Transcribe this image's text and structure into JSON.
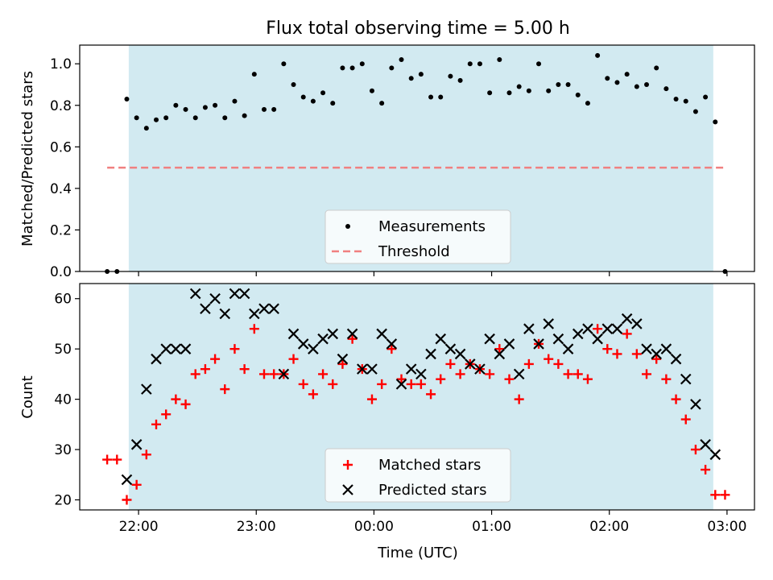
{
  "chart_data": {
    "title": "Flux total observing time = 5.00 h",
    "xlabel": "Time (UTC)",
    "x_ticks": [
      "22:00",
      "23:00",
      "00:00",
      "01:00",
      "02:00",
      "03:00"
    ],
    "shaded_region": {
      "color": "#add8e6"
    },
    "panels": [
      {
        "type": "scatter",
        "ylabel": "Matched/Predicted stars",
        "ylim": [
          0,
          1.09
        ],
        "y_ticks": [
          "0.0",
          "0.2",
          "0.4",
          "0.6",
          "0.8",
          "1.0"
        ],
        "legend": {
          "placement": "lower-center"
        },
        "series": [
          {
            "name": "Measurements",
            "color": "#000000",
            "marker": "dot",
            "x": [
              "21:44",
              "21:49",
              "21:54",
              "21:59",
              "22:04",
              "22:09",
              "22:14",
              "22:19",
              "22:24",
              "22:29",
              "22:34",
              "22:39",
              "22:44",
              "22:49",
              "22:54",
              "22:59",
              "23:04",
              "23:09",
              "23:14",
              "23:19",
              "23:24",
              "23:29",
              "23:34",
              "23:39",
              "23:44",
              "23:49",
              "23:54",
              "23:59",
              "00:04",
              "00:09",
              "00:14",
              "00:19",
              "00:24",
              "00:29",
              "00:34",
              "00:39",
              "00:44",
              "00:49",
              "00:54",
              "00:59",
              "01:04",
              "01:09",
              "01:14",
              "01:19",
              "01:24",
              "01:29",
              "01:34",
              "01:39",
              "01:44",
              "01:49",
              "01:54",
              "01:59",
              "02:04",
              "02:09",
              "02:14",
              "02:19",
              "02:24",
              "02:29",
              "02:34",
              "02:39",
              "02:44",
              "02:49",
              "02:54",
              "02:59"
            ],
            "values": [
              0.0,
              0.0,
              0.83,
              0.74,
              0.69,
              0.73,
              0.74,
              0.8,
              0.78,
              0.74,
              0.79,
              0.8,
              0.74,
              0.82,
              0.75,
              0.95,
              0.78,
              0.78,
              1.0,
              0.9,
              0.84,
              0.82,
              0.86,
              0.81,
              0.98,
              0.98,
              1.0,
              0.87,
              0.81,
              0.98,
              1.02,
              0.93,
              0.95,
              0.84,
              0.84,
              0.94,
              0.92,
              1.0,
              1.0,
              0.86,
              1.02,
              0.86,
              0.89,
              0.87,
              1.0,
              0.87,
              0.9,
              0.9,
              0.85,
              0.81,
              1.04,
              0.93,
              0.91,
              0.95,
              0.89,
              0.9,
              0.98,
              0.88,
              0.83,
              0.82,
              0.77,
              0.84,
              0.72,
              0.0
            ]
          },
          {
            "name": "Threshold",
            "color": "#f08080",
            "style": "dashed",
            "x": [
              "21:44",
              "02:59"
            ],
            "values": [
              0.5,
              0.5
            ]
          }
        ]
      },
      {
        "type": "scatter",
        "ylabel": "Count",
        "ylim": [
          18,
          63
        ],
        "y_ticks": [
          "20",
          "30",
          "40",
          "50",
          "60"
        ],
        "legend": {
          "placement": "lower-center"
        },
        "series": [
          {
            "name": "Matched stars",
            "color": "#ff0000",
            "marker": "plus",
            "x": [
              "21:44",
              "21:49",
              "21:54",
              "21:59",
              "22:04",
              "22:09",
              "22:14",
              "22:19",
              "22:24",
              "22:29",
              "22:34",
              "22:39",
              "22:44",
              "22:49",
              "22:54",
              "22:59",
              "23:04",
              "23:09",
              "23:14",
              "23:19",
              "23:24",
              "23:29",
              "23:34",
              "23:39",
              "23:44",
              "23:49",
              "23:54",
              "23:59",
              "00:04",
              "00:09",
              "00:14",
              "00:19",
              "00:24",
              "00:29",
              "00:34",
              "00:39",
              "00:44",
              "00:49",
              "00:54",
              "00:59",
              "01:04",
              "01:09",
              "01:14",
              "01:19",
              "01:24",
              "01:29",
              "01:34",
              "01:39",
              "01:44",
              "01:49",
              "01:54",
              "01:59",
              "02:04",
              "02:09",
              "02:14",
              "02:19",
              "02:24",
              "02:29",
              "02:34",
              "02:39",
              "02:44",
              "02:49",
              "02:54",
              "02:59"
            ],
            "values": [
              28,
              28,
              20,
              23,
              29,
              35,
              37,
              40,
              39,
              45,
              46,
              48,
              42,
              50,
              46,
              54,
              45,
              45,
              45,
              48,
              43,
              41,
              45,
              43,
              47,
              52,
              46,
              40,
              43,
              50,
              44,
              43,
              43,
              41,
              44,
              47,
              45,
              47,
              46,
              45,
              50,
              44,
              40,
              47,
              51,
              48,
              47,
              45,
              45,
              44,
              54,
              50,
              49,
              53,
              49,
              45,
              48,
              44,
              40,
              36,
              30,
              26,
              21,
              21
            ]
          },
          {
            "name": "Predicted stars",
            "color": "#000000",
            "marker": "cross",
            "x": [
              "21:54",
              "21:59",
              "22:04",
              "22:09",
              "22:14",
              "22:19",
              "22:24",
              "22:29",
              "22:34",
              "22:39",
              "22:44",
              "22:49",
              "22:54",
              "22:59",
              "23:04",
              "23:09",
              "23:14",
              "23:19",
              "23:24",
              "23:29",
              "23:34",
              "23:39",
              "23:44",
              "23:49",
              "23:54",
              "23:59",
              "00:04",
              "00:09",
              "00:14",
              "00:19",
              "00:24",
              "00:29",
              "00:34",
              "00:39",
              "00:44",
              "00:49",
              "00:54",
              "00:59",
              "01:04",
              "01:09",
              "01:14",
              "01:19",
              "01:24",
              "01:29",
              "01:34",
              "01:39",
              "01:44",
              "01:49",
              "01:54",
              "01:59",
              "02:04",
              "02:09",
              "02:14",
              "02:19",
              "02:24",
              "02:29",
              "02:34",
              "02:39",
              "02:44",
              "02:49",
              "02:54"
            ],
            "values": [
              24,
              31,
              42,
              48,
              50,
              50,
              50,
              61,
              58,
              60,
              57,
              61,
              61,
              57,
              58,
              58,
              45,
              53,
              51,
              50,
              52,
              53,
              48,
              53,
              46,
              46,
              53,
              51,
              43,
              46,
              45,
              49,
              52,
              50,
              49,
              47,
              46,
              52,
              49,
              51,
              45,
              54,
              51,
              55,
              52,
              50,
              53,
              54,
              52,
              54,
              54,
              56,
              55,
              50,
              49,
              50,
              48,
              44,
              39,
              31,
              29
            ]
          }
        ]
      }
    ]
  }
}
